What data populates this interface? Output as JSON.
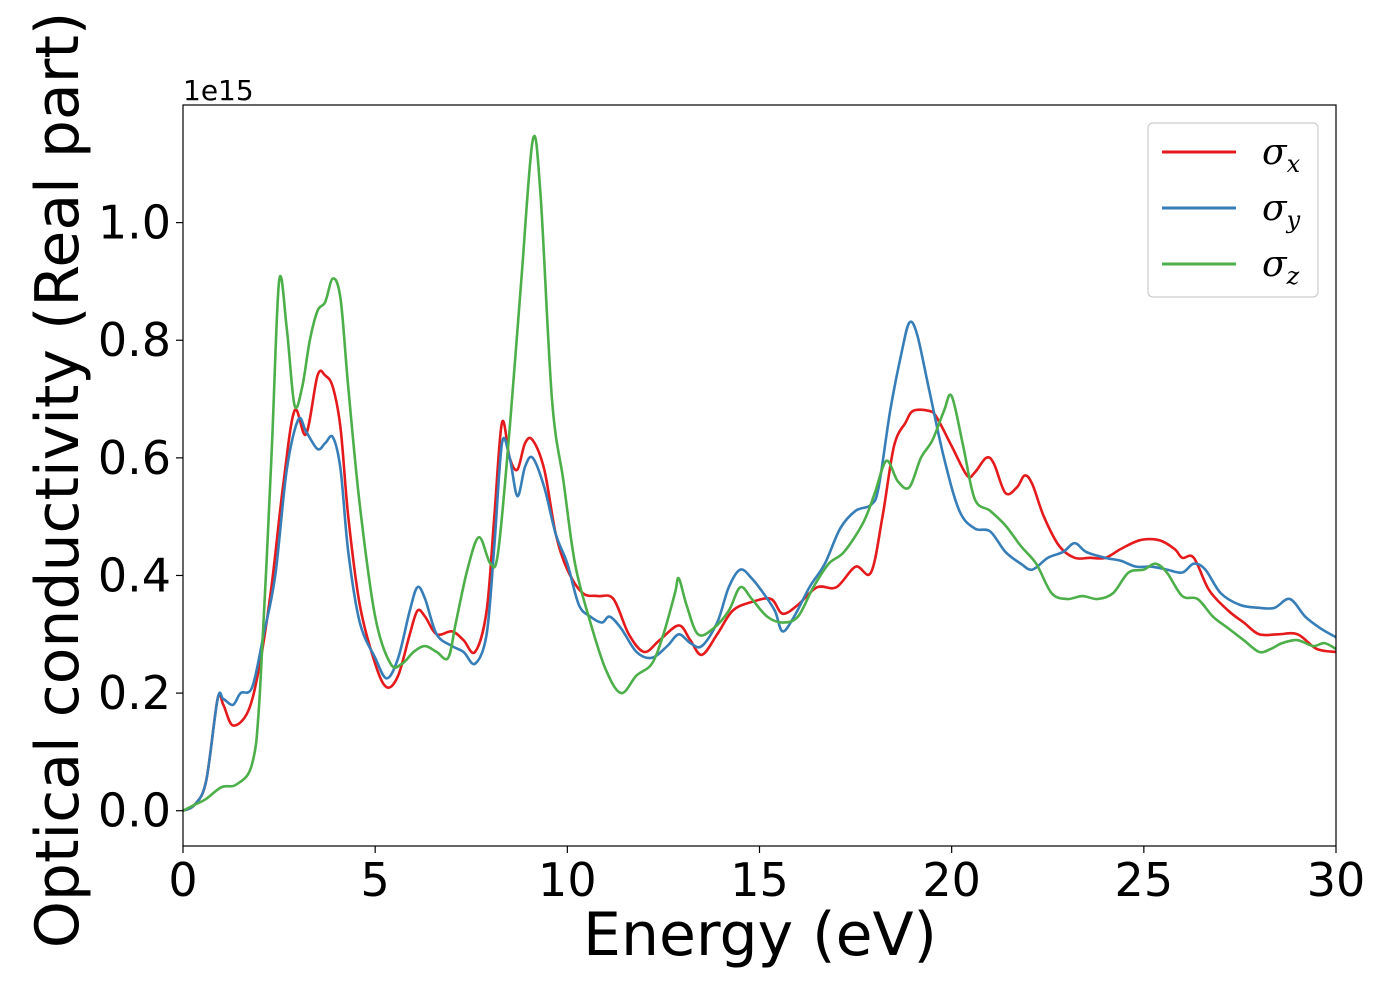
{
  "chart_data": {
    "type": "line",
    "xlabel": "Energy (eV)",
    "ylabel": "Optical conductivity (Real part)",
    "y_offset_label": "1e15",
    "xlim": [
      0,
      30
    ],
    "ylim": [
      -0.06,
      1.2
    ],
    "xticks": [
      0,
      5,
      10,
      15,
      20,
      25,
      30
    ],
    "xtick_labels": [
      "0",
      "5",
      "10",
      "15",
      "20",
      "25",
      "30"
    ],
    "yticks": [
      0.0,
      0.2,
      0.4,
      0.6,
      0.8,
      1.0
    ],
    "ytick_labels": [
      "0.0",
      "0.2",
      "0.4",
      "0.6",
      "0.8",
      "1.0"
    ],
    "grid": false,
    "legend_position": "top-right",
    "series": [
      {
        "name": "σx",
        "symbol": "σ",
        "subscript": "x",
        "color": "#e41a1c",
        "points": [
          [
            0,
            0
          ],
          [
            0.3,
            0.01
          ],
          [
            0.6,
            0.05
          ],
          [
            0.9,
            0.19
          ],
          [
            1.05,
            0.18
          ],
          [
            1.3,
            0.145
          ],
          [
            1.7,
            0.17
          ],
          [
            2.0,
            0.25
          ],
          [
            2.3,
            0.38
          ],
          [
            2.6,
            0.55
          ],
          [
            2.9,
            0.68
          ],
          [
            3.2,
            0.64
          ],
          [
            3.5,
            0.74
          ],
          [
            3.7,
            0.74
          ],
          [
            3.9,
            0.72
          ],
          [
            4.1,
            0.65
          ],
          [
            4.3,
            0.5
          ],
          [
            4.6,
            0.35
          ],
          [
            5.0,
            0.25
          ],
          [
            5.3,
            0.21
          ],
          [
            5.6,
            0.23
          ],
          [
            5.9,
            0.3
          ],
          [
            6.1,
            0.34
          ],
          [
            6.3,
            0.33
          ],
          [
            6.6,
            0.3
          ],
          [
            7.0,
            0.305
          ],
          [
            7.3,
            0.29
          ],
          [
            7.6,
            0.27
          ],
          [
            7.9,
            0.34
          ],
          [
            8.1,
            0.5
          ],
          [
            8.3,
            0.66
          ],
          [
            8.5,
            0.6
          ],
          [
            8.7,
            0.58
          ],
          [
            8.9,
            0.625
          ],
          [
            9.1,
            0.63
          ],
          [
            9.4,
            0.58
          ],
          [
            9.7,
            0.47
          ],
          [
            10.0,
            0.41
          ],
          [
            10.4,
            0.37
          ],
          [
            10.8,
            0.365
          ],
          [
            11.2,
            0.36
          ],
          [
            11.6,
            0.3
          ],
          [
            12.0,
            0.27
          ],
          [
            12.4,
            0.29
          ],
          [
            12.9,
            0.315
          ],
          [
            13.2,
            0.29
          ],
          [
            13.5,
            0.265
          ],
          [
            13.9,
            0.3
          ],
          [
            14.3,
            0.34
          ],
          [
            14.8,
            0.355
          ],
          [
            15.3,
            0.36
          ],
          [
            15.6,
            0.335
          ],
          [
            16.0,
            0.35
          ],
          [
            16.5,
            0.38
          ],
          [
            17.0,
            0.38
          ],
          [
            17.5,
            0.415
          ],
          [
            17.9,
            0.405
          ],
          [
            18.2,
            0.5
          ],
          [
            18.5,
            0.62
          ],
          [
            18.8,
            0.66
          ],
          [
            19.0,
            0.68
          ],
          [
            19.4,
            0.68
          ],
          [
            19.6,
            0.67
          ],
          [
            20.0,
            0.62
          ],
          [
            20.4,
            0.57
          ],
          [
            20.6,
            0.575
          ],
          [
            20.9,
            0.6
          ],
          [
            21.1,
            0.59
          ],
          [
            21.4,
            0.54
          ],
          [
            21.7,
            0.55
          ],
          [
            21.9,
            0.57
          ],
          [
            22.1,
            0.555
          ],
          [
            22.4,
            0.5
          ],
          [
            22.8,
            0.45
          ],
          [
            23.2,
            0.43
          ],
          [
            23.6,
            0.43
          ],
          [
            24.0,
            0.43
          ],
          [
            24.4,
            0.445
          ],
          [
            24.9,
            0.46
          ],
          [
            25.4,
            0.46
          ],
          [
            25.8,
            0.445
          ],
          [
            26.0,
            0.43
          ],
          [
            26.3,
            0.43
          ],
          [
            26.7,
            0.375
          ],
          [
            27.2,
            0.34
          ],
          [
            27.6,
            0.32
          ],
          [
            28.0,
            0.3
          ],
          [
            28.5,
            0.3
          ],
          [
            29.0,
            0.3
          ],
          [
            29.5,
            0.275
          ],
          [
            30.0,
            0.27
          ]
        ]
      },
      {
        "name": "σy",
        "symbol": "σ",
        "subscript": "y",
        "color": "#377eb8",
        "points": [
          [
            0,
            0
          ],
          [
            0.3,
            0.01
          ],
          [
            0.6,
            0.05
          ],
          [
            0.9,
            0.19
          ],
          [
            1.05,
            0.19
          ],
          [
            1.3,
            0.18
          ],
          [
            1.5,
            0.2
          ],
          [
            1.8,
            0.21
          ],
          [
            2.1,
            0.3
          ],
          [
            2.4,
            0.4
          ],
          [
            2.7,
            0.58
          ],
          [
            3.0,
            0.665
          ],
          [
            3.2,
            0.645
          ],
          [
            3.5,
            0.615
          ],
          [
            3.7,
            0.625
          ],
          [
            3.9,
            0.635
          ],
          [
            4.1,
            0.58
          ],
          [
            4.3,
            0.44
          ],
          [
            4.6,
            0.32
          ],
          [
            5.0,
            0.26
          ],
          [
            5.3,
            0.225
          ],
          [
            5.6,
            0.26
          ],
          [
            5.9,
            0.34
          ],
          [
            6.1,
            0.38
          ],
          [
            6.3,
            0.36
          ],
          [
            6.6,
            0.3
          ],
          [
            7.0,
            0.28
          ],
          [
            7.3,
            0.27
          ],
          [
            7.6,
            0.25
          ],
          [
            7.9,
            0.3
          ],
          [
            8.1,
            0.45
          ],
          [
            8.3,
            0.625
          ],
          [
            8.5,
            0.6
          ],
          [
            8.7,
            0.535
          ],
          [
            8.9,
            0.585
          ],
          [
            9.1,
            0.6
          ],
          [
            9.4,
            0.55
          ],
          [
            9.7,
            0.47
          ],
          [
            10.0,
            0.42
          ],
          [
            10.3,
            0.35
          ],
          [
            10.6,
            0.33
          ],
          [
            10.9,
            0.32
          ],
          [
            11.1,
            0.33
          ],
          [
            11.4,
            0.31
          ],
          [
            11.8,
            0.27
          ],
          [
            12.2,
            0.26
          ],
          [
            12.6,
            0.28
          ],
          [
            12.9,
            0.3
          ],
          [
            13.2,
            0.285
          ],
          [
            13.5,
            0.28
          ],
          [
            13.9,
            0.32
          ],
          [
            14.2,
            0.38
          ],
          [
            14.5,
            0.41
          ],
          [
            14.8,
            0.395
          ],
          [
            15.1,
            0.37
          ],
          [
            15.4,
            0.34
          ],
          [
            15.6,
            0.305
          ],
          [
            15.9,
            0.33
          ],
          [
            16.3,
            0.38
          ],
          [
            16.7,
            0.42
          ],
          [
            17.1,
            0.48
          ],
          [
            17.5,
            0.51
          ],
          [
            17.9,
            0.52
          ],
          [
            18.1,
            0.55
          ],
          [
            18.4,
            0.68
          ],
          [
            18.7,
            0.78
          ],
          [
            18.9,
            0.83
          ],
          [
            19.1,
            0.81
          ],
          [
            19.4,
            0.72
          ],
          [
            19.8,
            0.6
          ],
          [
            20.2,
            0.51
          ],
          [
            20.6,
            0.48
          ],
          [
            21.0,
            0.475
          ],
          [
            21.4,
            0.44
          ],
          [
            21.8,
            0.42
          ],
          [
            22.1,
            0.41
          ],
          [
            22.5,
            0.43
          ],
          [
            22.9,
            0.44
          ],
          [
            23.2,
            0.455
          ],
          [
            23.5,
            0.44
          ],
          [
            24.0,
            0.43
          ],
          [
            24.4,
            0.425
          ],
          [
            24.8,
            0.415
          ],
          [
            25.2,
            0.415
          ],
          [
            25.6,
            0.41
          ],
          [
            26.0,
            0.405
          ],
          [
            26.3,
            0.42
          ],
          [
            26.6,
            0.41
          ],
          [
            27.0,
            0.37
          ],
          [
            27.5,
            0.35
          ],
          [
            28.0,
            0.345
          ],
          [
            28.4,
            0.345
          ],
          [
            28.8,
            0.36
          ],
          [
            29.2,
            0.33
          ],
          [
            29.6,
            0.31
          ],
          [
            30.0,
            0.295
          ]
        ]
      },
      {
        "name": "σz",
        "symbol": "σ",
        "subscript": "z",
        "color": "#4daf4a",
        "points": [
          [
            0,
            0
          ],
          [
            0.3,
            0.01
          ],
          [
            0.6,
            0.02
          ],
          [
            1.0,
            0.04
          ],
          [
            1.4,
            0.045
          ],
          [
            1.8,
            0.08
          ],
          [
            2.0,
            0.2
          ],
          [
            2.3,
            0.6
          ],
          [
            2.5,
            0.9
          ],
          [
            2.7,
            0.82
          ],
          [
            2.9,
            0.69
          ],
          [
            3.1,
            0.72
          ],
          [
            3.3,
            0.8
          ],
          [
            3.5,
            0.85
          ],
          [
            3.7,
            0.865
          ],
          [
            3.9,
            0.905
          ],
          [
            4.1,
            0.87
          ],
          [
            4.3,
            0.72
          ],
          [
            4.6,
            0.52
          ],
          [
            5.0,
            0.33
          ],
          [
            5.4,
            0.25
          ],
          [
            5.7,
            0.25
          ],
          [
            6.0,
            0.27
          ],
          [
            6.3,
            0.28
          ],
          [
            6.6,
            0.27
          ],
          [
            6.9,
            0.26
          ],
          [
            7.1,
            0.32
          ],
          [
            7.4,
            0.41
          ],
          [
            7.7,
            0.465
          ],
          [
            8.0,
            0.42
          ],
          [
            8.2,
            0.44
          ],
          [
            8.5,
            0.65
          ],
          [
            8.8,
            0.9
          ],
          [
            9.1,
            1.14
          ],
          [
            9.3,
            1.05
          ],
          [
            9.6,
            0.7
          ],
          [
            9.9,
            0.56
          ],
          [
            10.2,
            0.42
          ],
          [
            10.6,
            0.32
          ],
          [
            11.0,
            0.24
          ],
          [
            11.4,
            0.2
          ],
          [
            11.8,
            0.23
          ],
          [
            12.2,
            0.25
          ],
          [
            12.5,
            0.3
          ],
          [
            12.8,
            0.37
          ],
          [
            12.9,
            0.395
          ],
          [
            13.1,
            0.35
          ],
          [
            13.4,
            0.3
          ],
          [
            13.8,
            0.31
          ],
          [
            14.2,
            0.34
          ],
          [
            14.5,
            0.38
          ],
          [
            14.8,
            0.36
          ],
          [
            15.2,
            0.33
          ],
          [
            15.6,
            0.32
          ],
          [
            16.0,
            0.33
          ],
          [
            16.4,
            0.38
          ],
          [
            16.8,
            0.42
          ],
          [
            17.2,
            0.44
          ],
          [
            17.7,
            0.49
          ],
          [
            18.0,
            0.54
          ],
          [
            18.3,
            0.595
          ],
          [
            18.6,
            0.56
          ],
          [
            18.9,
            0.55
          ],
          [
            19.2,
            0.6
          ],
          [
            19.5,
            0.63
          ],
          [
            19.8,
            0.68
          ],
          [
            20.0,
            0.705
          ],
          [
            20.3,
            0.62
          ],
          [
            20.6,
            0.53
          ],
          [
            21.0,
            0.51
          ],
          [
            21.4,
            0.485
          ],
          [
            21.8,
            0.45
          ],
          [
            22.2,
            0.42
          ],
          [
            22.6,
            0.37
          ],
          [
            23.0,
            0.36
          ],
          [
            23.4,
            0.365
          ],
          [
            23.8,
            0.36
          ],
          [
            24.2,
            0.37
          ],
          [
            24.6,
            0.405
          ],
          [
            25.0,
            0.41
          ],
          [
            25.3,
            0.42
          ],
          [
            25.6,
            0.405
          ],
          [
            26.0,
            0.365
          ],
          [
            26.4,
            0.36
          ],
          [
            26.8,
            0.33
          ],
          [
            27.2,
            0.31
          ],
          [
            27.6,
            0.29
          ],
          [
            28.0,
            0.27
          ],
          [
            28.3,
            0.275
          ],
          [
            28.6,
            0.285
          ],
          [
            29.0,
            0.29
          ],
          [
            29.4,
            0.28
          ],
          [
            29.7,
            0.285
          ],
          [
            30.0,
            0.275
          ]
        ]
      }
    ]
  }
}
